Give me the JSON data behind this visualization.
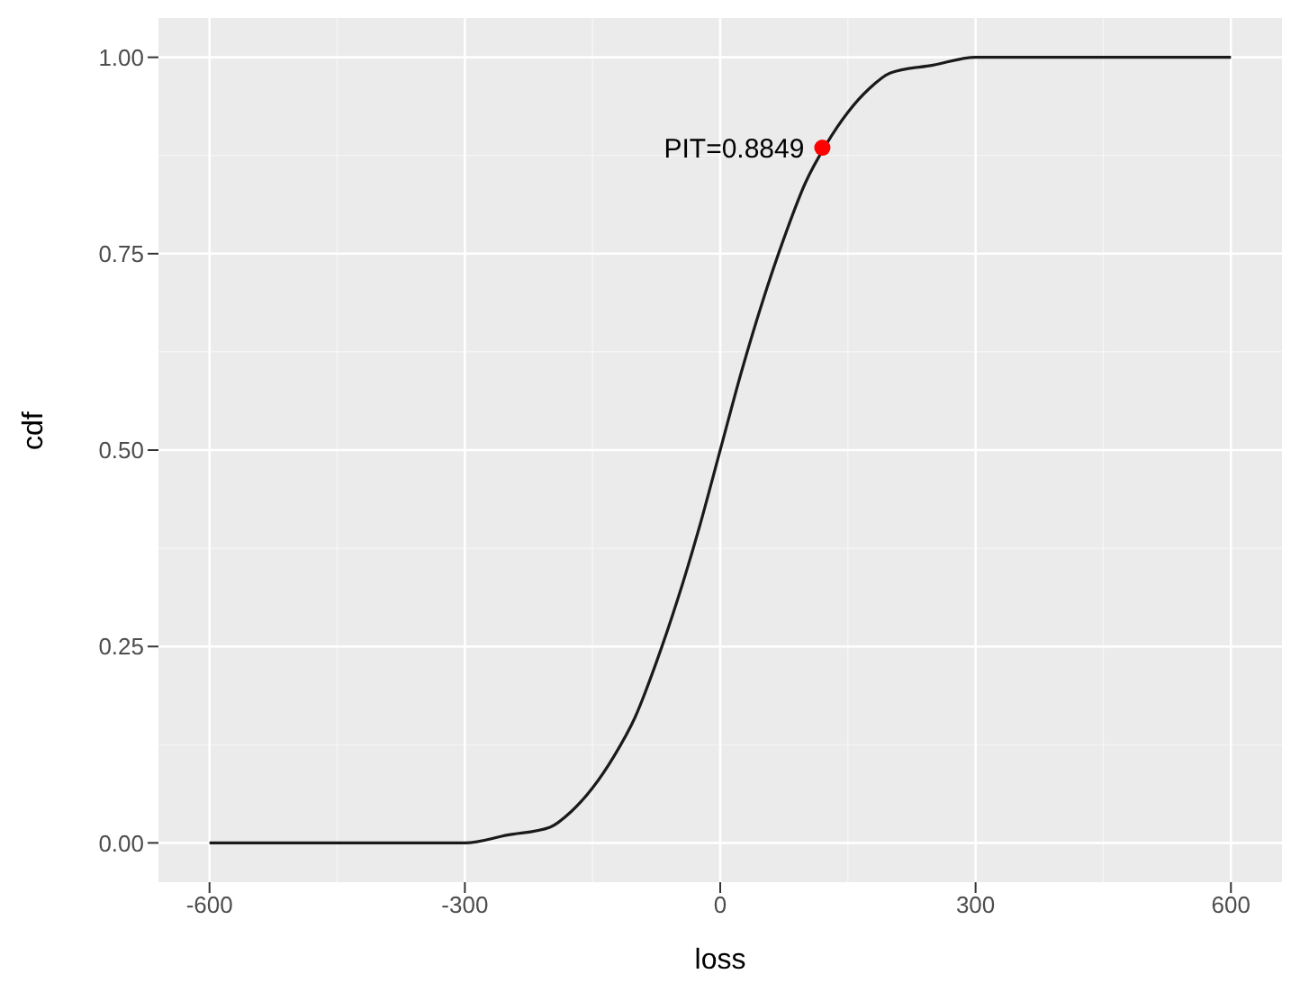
{
  "chart_data": {
    "type": "line",
    "xlabel": "loss",
    "ylabel": "cdf",
    "xlim": [
      -660,
      660
    ],
    "ylim": [
      -0.05,
      1.05
    ],
    "xticks": [
      -600,
      -300,
      0,
      300,
      600
    ],
    "yticks": [
      {
        "value": 0,
        "label": "0.00"
      },
      {
        "value": 0.25,
        "label": "0.25"
      },
      {
        "value": 0.5,
        "label": "0.50"
      },
      {
        "value": 0.75,
        "label": "0.75"
      },
      {
        "value": 1,
        "label": "1.00"
      }
    ],
    "grid": true,
    "marker": "none",
    "series": [
      {
        "color": "#1a1a1a",
        "x": [
          -600,
          -400,
          -300,
          -250,
          -200,
          -175,
          -150,
          -125,
          -100,
          -75,
          -50,
          -25,
          0,
          25,
          50,
          75,
          100,
          125,
          150,
          175,
          200,
          250,
          300,
          400,
          600
        ],
        "values": [
          0,
          0,
          0,
          0.01,
          0.02,
          0.04,
          0.07,
          0.11,
          0.16,
          0.23,
          0.31,
          0.4,
          0.5,
          0.6,
          0.69,
          0.77,
          0.84,
          0.89,
          0.93,
          0.96,
          0.98,
          0.99,
          1,
          1,
          1
        ]
      },
      {
        "type": "scatter",
        "color": "#ff0000",
        "marker": "circle",
        "x": [
          120
        ],
        "values": [
          0.8849
        ]
      }
    ],
    "annotations": [
      {
        "text": "PIT=0.8849",
        "x": 120,
        "y": 0.8849
      }
    ]
  }
}
